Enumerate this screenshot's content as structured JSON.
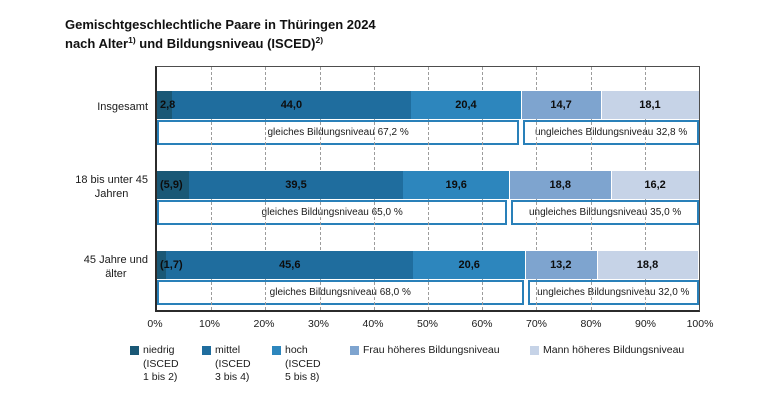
{
  "title": {
    "line1": "Gemischtgeschlechtliche Paare in Thüringen 2024",
    "line2_before_sup1": "nach Alter",
    "sup1": "1)",
    "line2_between": " und Bildungsniveau (ISCED)",
    "sup2": "2)"
  },
  "chart_data": {
    "type": "bar",
    "orientation": "horizontal",
    "stacked": true,
    "title": "Gemischtgeschlechtliche Paare in Thüringen 2024 nach Alter und Bildungsniveau (ISCED)",
    "categories": [
      "Insgesamt",
      "18 bis unter 45 Jahren",
      "45 Jahre und älter"
    ],
    "category_lines": [
      [
        "Insgesamt"
      ],
      [
        "18 bis unter 45",
        "Jahren"
      ],
      [
        "45 Jahre und",
        "älter"
      ]
    ],
    "series": [
      {
        "name": "niedrig (ISCED 1 bis 2)",
        "color": "#1a5876",
        "values": [
          2.8,
          5.9,
          1.7
        ],
        "labels": [
          "2,8",
          "(5,9)",
          "(1,7)"
        ]
      },
      {
        "name": "mittel (ISCED 3 bis 4)",
        "color": "#1f6d9e",
        "values": [
          44.0,
          39.5,
          45.6
        ],
        "labels": [
          "44,0",
          "39,5",
          "45,6"
        ]
      },
      {
        "name": "hoch (ISCED 5 bis 8)",
        "color": "#2d86bd",
        "values": [
          20.4,
          19.6,
          20.6
        ],
        "labels": [
          "20,4",
          "19,6",
          "20,6"
        ]
      },
      {
        "name": "Frau höheres Bildungsniveau",
        "color": "#7ea4cf",
        "values": [
          14.7,
          18.8,
          13.2
        ],
        "labels": [
          "14,7",
          "18,8",
          "13,2"
        ]
      },
      {
        "name": "Mann höheres Bildungsniveau",
        "color": "#c6d3e7",
        "values": [
          18.1,
          16.2,
          18.8
        ],
        "labels": [
          "18,1",
          "16,2",
          "18,8"
        ]
      }
    ],
    "group_annotations": [
      {
        "left_text": "gleiches Bildungsniveau 67,2 %",
        "right_text": "ungleiches Bildungsniveau 32,8 %",
        "split_percent": 67.2
      },
      {
        "left_text": "gleiches Bildungsniveau 65,0 %",
        "right_text": "ungleiches Bildungsniveau 35,0 %",
        "split_percent": 65.0
      },
      {
        "left_text": "gleiches Bildungsniveau 68,0 %",
        "right_text": "ungleiches Bildungsniveau 32,0 %",
        "split_percent": 68.0
      }
    ],
    "x_ticks": [
      "0%",
      "10%",
      "20%",
      "30%",
      "40%",
      "50%",
      "60%",
      "70%",
      "80%",
      "90%",
      "100%"
    ],
    "xlim": [
      0,
      100
    ],
    "grid": "vertical-dashed",
    "legend_position": "bottom"
  },
  "legend": {
    "items": [
      {
        "lines": [
          "niedrig",
          "(ISCED",
          "1 bis 2)"
        ],
        "color": "#1a5876"
      },
      {
        "lines": [
          "mittel",
          "(ISCED",
          "3 bis 4)"
        ],
        "color": "#1f6d9e"
      },
      {
        "lines": [
          "hoch",
          "(ISCED",
          "5 bis 8)"
        ],
        "color": "#2d86bd"
      },
      {
        "lines": [
          "Frau höheres Bildungsniveau"
        ],
        "color": "#7ea4cf"
      },
      {
        "lines": [
          "Mann höheres Bildungsniveau"
        ],
        "color": "#c6d3e7"
      }
    ]
  },
  "colors": {
    "annotation_border": "#2980b9",
    "plot_border": "#4d4d4d",
    "gridline": "#9c9c9c",
    "text": "#1a1a1a"
  }
}
